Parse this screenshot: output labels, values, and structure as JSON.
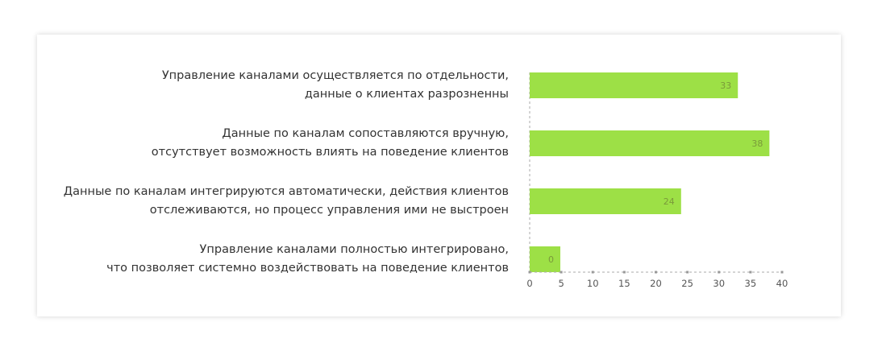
{
  "chart_data": {
    "type": "bar",
    "orientation": "horizontal",
    "categories": [
      [
        "Управление каналами осуществляется по отдельности,",
        "данные о клиентах разрозненны"
      ],
      [
        "Данные по каналам сопоставляются вручную,",
        "отсутствует возможность влиять на поведение клиентов"
      ],
      [
        "Данные по каналам интегрируются автоматически, действия клиентов",
        "отслеживаются, но процесс управления ими не выстроен"
      ],
      [
        "Управление каналами полностью интегрировано,",
        "что позволяет системно воздействовать на поведение клиентов"
      ]
    ],
    "values": [
      33,
      38,
      24,
      0
    ],
    "value_labels": [
      "33",
      "38",
      "24",
      "0"
    ],
    "x_ticks": [
      0,
      5,
      10,
      15,
      20,
      25,
      30,
      35,
      40
    ],
    "xlim": [
      0,
      40
    ],
    "bar_color": "#9de046",
    "axis_color": "#aaaaaa",
    "grid": false
  }
}
